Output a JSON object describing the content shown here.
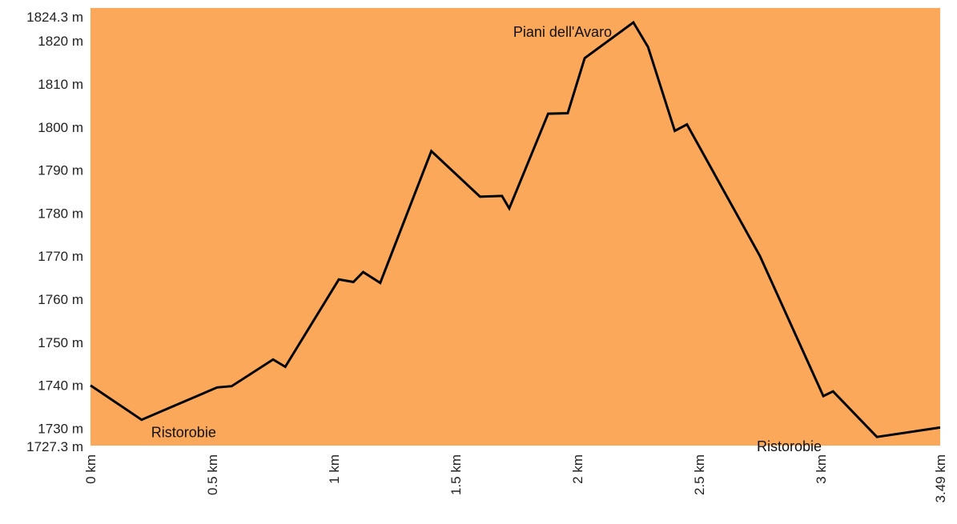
{
  "chart_data": {
    "type": "area",
    "title": "",
    "xlabel": "",
    "ylabel": "",
    "xlim": [
      0,
      3.49
    ],
    "ylim": [
      1727.3,
      1824.3
    ],
    "grid": false,
    "legend": "none",
    "colors": {
      "fill": "#FBA85B",
      "line": "#000000",
      "background": "#FFFFFF"
    },
    "x_ticks": [
      {
        "value": 0,
        "label": "0 km"
      },
      {
        "value": 0.5,
        "label": "0.5 km"
      },
      {
        "value": 1,
        "label": "1 km"
      },
      {
        "value": 1.5,
        "label": "1.5 km"
      },
      {
        "value": 2,
        "label": "2 km"
      },
      {
        "value": 2.5,
        "label": "2.5 km"
      },
      {
        "value": 3,
        "label": "3 km"
      },
      {
        "value": 3.49,
        "label": "3.49 km"
      }
    ],
    "y_ticks": [
      {
        "value": 1824.3,
        "label": "1824.3 m"
      },
      {
        "value": 1820,
        "label": "1820 m"
      },
      {
        "value": 1810,
        "label": "1810 m"
      },
      {
        "value": 1800,
        "label": "1800 m"
      },
      {
        "value": 1790,
        "label": "1790 m"
      },
      {
        "value": 1780,
        "label": "1780 m"
      },
      {
        "value": 1770,
        "label": "1770 m"
      },
      {
        "value": 1760,
        "label": "1760 m"
      },
      {
        "value": 1750,
        "label": "1750 m"
      },
      {
        "value": 1740,
        "label": "1740 m"
      },
      {
        "value": 1730,
        "label": "1730 m"
      },
      {
        "value": 1727.3,
        "label": "1727.3 m"
      }
    ],
    "series": [
      {
        "x": [
          0,
          0.21,
          0.52,
          0.58,
          0.75,
          0.8,
          1.02,
          1.08,
          1.12,
          1.19,
          1.4,
          1.6,
          1.69,
          1.72,
          1.88,
          1.96,
          2.03,
          2.23,
          2.29,
          2.4,
          2.45,
          2.75,
          3.01,
          3.05,
          3.23,
          3.49
        ],
        "y": [
          1740,
          1732,
          1739.5,
          1739.8,
          1746,
          1744.3,
          1764.6,
          1764,
          1766.3,
          1763.8,
          1794.4,
          1783.8,
          1784,
          1781.1,
          1803.1,
          1803.2,
          1816,
          1824.3,
          1818.6,
          1799.1,
          1800.6,
          1770,
          1737.5,
          1738.6,
          1728,
          1730.2
        ]
      }
    ],
    "annotations": [
      {
        "text": "Piani dell'Avaro",
        "x": 2.23,
        "y": 1824.3
      },
      {
        "text": "Ristorobie",
        "x": 0.21,
        "y": 1732
      },
      {
        "text": "Ristorobie",
        "x": 3.23,
        "y": 1728
      }
    ]
  }
}
